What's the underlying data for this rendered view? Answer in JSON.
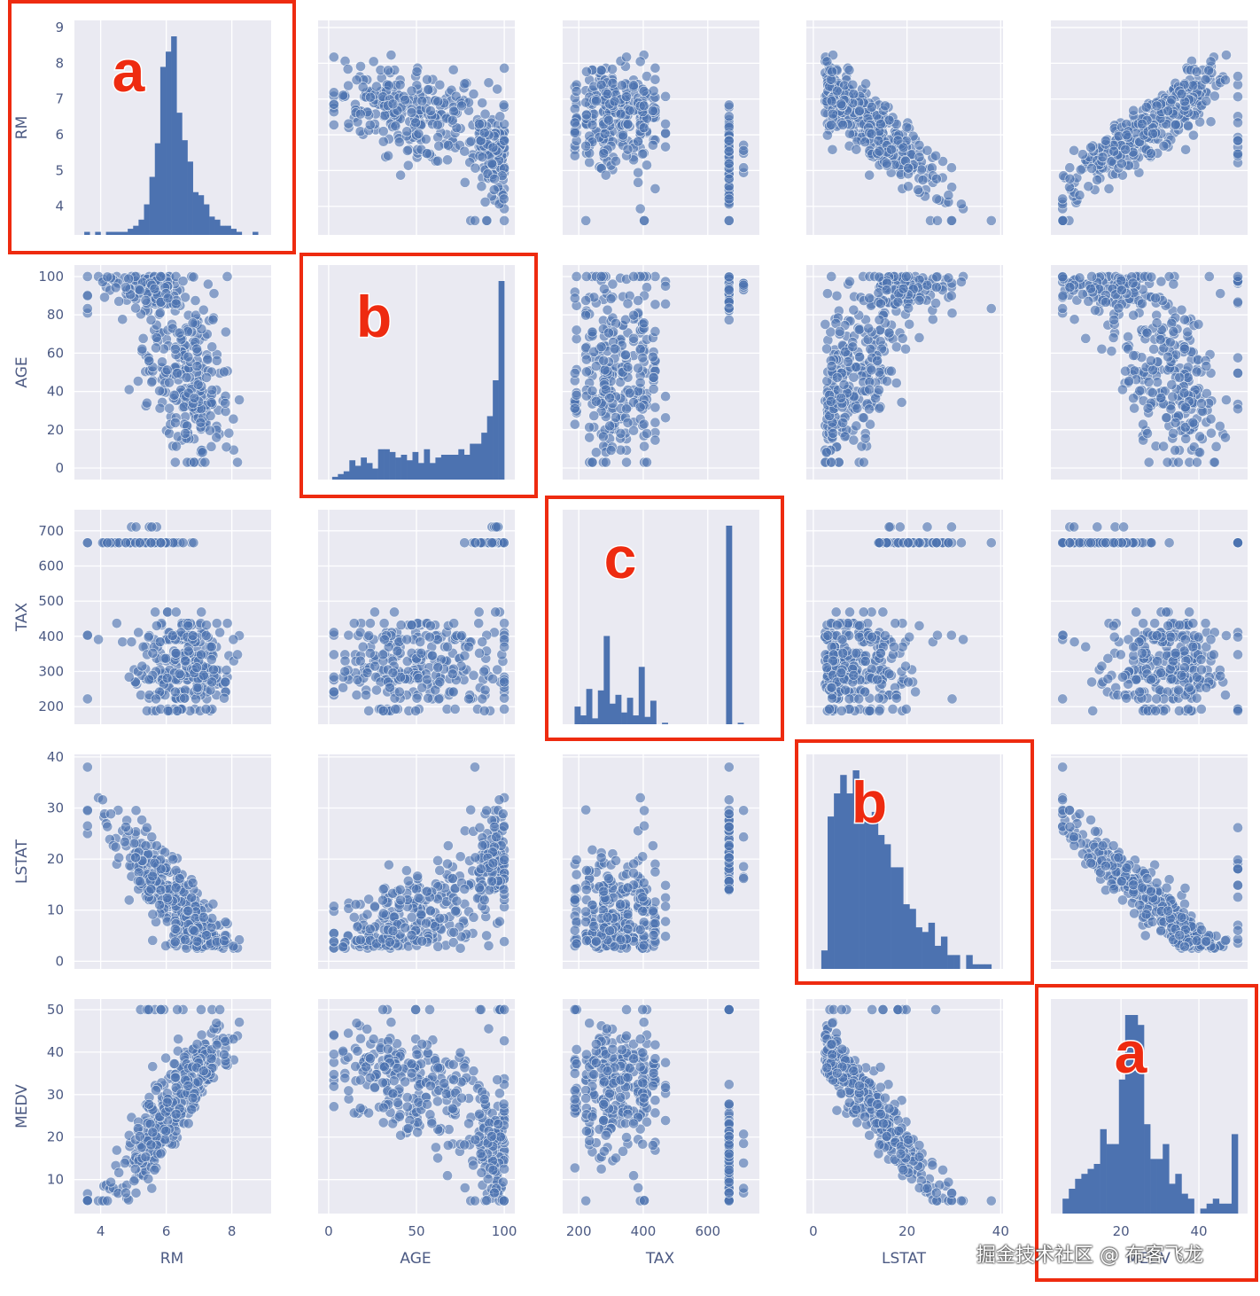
{
  "watermark": "掘金技术社区 @ 布客飞龙",
  "chart_data": {
    "type": "scatter",
    "variables": [
      "RM",
      "AGE",
      "TAX",
      "LSTAT",
      "MEDV"
    ],
    "axes": {
      "RM": {
        "lim": [
          3.2,
          9.2
        ],
        "ticks": [
          4,
          6,
          8
        ],
        "ytick_labels": [
          "4",
          "5",
          "6",
          "7",
          "8",
          "9"
        ]
      },
      "AGE": {
        "lim": [
          -6,
          106
        ],
        "ticks": [
          0,
          50,
          100
        ],
        "ytick_labels": [
          "0",
          "20",
          "40",
          "60",
          "80",
          "100"
        ]
      },
      "TAX": {
        "lim": [
          150,
          760
        ],
        "ticks": [
          200,
          400,
          600
        ],
        "ytick_labels": [
          "200",
          "300",
          "400",
          "500",
          "600",
          "700"
        ]
      },
      "LSTAT": {
        "lim": [
          -1.5,
          40.5
        ],
        "ticks": [
          0,
          20,
          40
        ],
        "ytick_labels": [
          "0",
          "10",
          "20",
          "30",
          "40"
        ]
      },
      "MEDV": {
        "lim": [
          2,
          52.5
        ],
        "ticks": [
          20,
          40
        ],
        "ytick_labels": [
          "10",
          "20",
          "30",
          "40",
          "50"
        ]
      }
    },
    "grid": true,
    "histograms": {
      "RM": {
        "range": [
          3.5,
          8.8
        ],
        "counts": [
          1,
          0,
          1,
          0,
          1,
          1,
          1,
          1,
          2,
          3,
          5,
          10,
          19,
          30,
          55,
          60,
          65,
          40,
          31,
          24,
          14,
          13,
          10,
          6,
          5,
          3,
          3,
          2,
          1,
          0,
          0,
          1
        ]
      },
      "AGE": {
        "range": [
          2,
          100
        ],
        "counts": [
          1,
          2,
          3,
          7,
          5,
          8,
          6,
          4,
          11,
          11,
          10,
          8,
          9,
          7,
          10,
          6,
          11,
          6,
          8,
          9,
          9,
          9,
          11,
          9,
          13,
          13,
          17,
          23,
          36,
          72
        ]
      },
      "TAX": {
        "range": [
          187,
          711
        ],
        "counts": [
          12,
          6,
          24,
          4,
          23,
          60,
          14,
          20,
          8,
          18,
          6,
          39,
          5,
          16,
          0,
          1,
          0,
          0,
          0,
          0,
          0,
          0,
          0,
          0,
          0,
          0,
          135,
          0,
          1
        ]
      },
      "LSTAT": {
        "range": [
          1.7,
          38
        ],
        "counts": [
          4,
          33,
          38,
          42,
          38,
          43,
          32,
          32,
          34,
          29,
          27,
          22,
          22,
          14,
          13,
          9,
          8,
          10,
          5,
          7,
          3,
          3,
          0,
          3,
          1,
          1,
          1
        ]
      },
      "MEDV": {
        "range": [
          5,
          50
        ],
        "counts": [
          3,
          5,
          7,
          8,
          9,
          10,
          17,
          14,
          14,
          27,
          40,
          40,
          38,
          18,
          11,
          11,
          14,
          6,
          8,
          4,
          3,
          0,
          1,
          2,
          3,
          2,
          2,
          16
        ]
      }
    },
    "highlight_labels": [
      "a",
      "b",
      "c",
      "b",
      "a"
    ],
    "xlabel_row": [
      "RM",
      "AGE",
      "TAX",
      "LSTAT",
      "MEDV"
    ],
    "ylabel_col": [
      "RM",
      "AGE",
      "TAX",
      "LSTAT",
      "MEDV"
    ]
  }
}
